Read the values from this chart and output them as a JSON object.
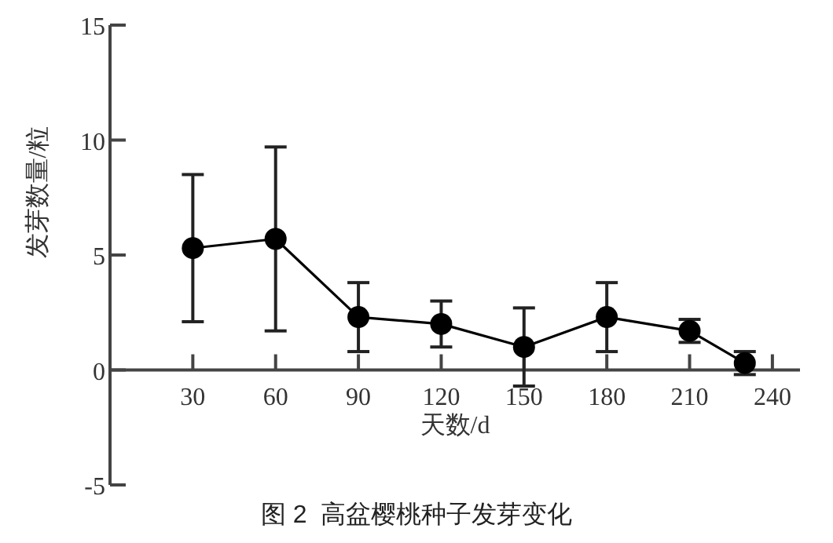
{
  "chart_data": {
    "type": "line",
    "title": "图 2  高盆樱桃种子发芽变化",
    "xlabel": "天数/d",
    "ylabel": "发芽数量/粒",
    "x": [
      30,
      60,
      90,
      120,
      150,
      180,
      210,
      230
    ],
    "series": [
      {
        "color": "#000000",
        "values": [
          5.3,
          5.7,
          2.3,
          2.0,
          1.0,
          2.3,
          1.7,
          0.3
        ],
        "errors": [
          3.2,
          4.0,
          1.5,
          1.0,
          1.7,
          1.5,
          0.5,
          0.5
        ]
      }
    ],
    "xlim": [
      0,
      250
    ],
    "ylim": [
      -5,
      15
    ],
    "xticks": [
      30,
      60,
      90,
      120,
      150,
      180,
      210,
      240
    ],
    "yticks": [
      -5,
      0,
      5,
      10,
      15
    ],
    "marker": "circle",
    "line_style": "solid"
  }
}
